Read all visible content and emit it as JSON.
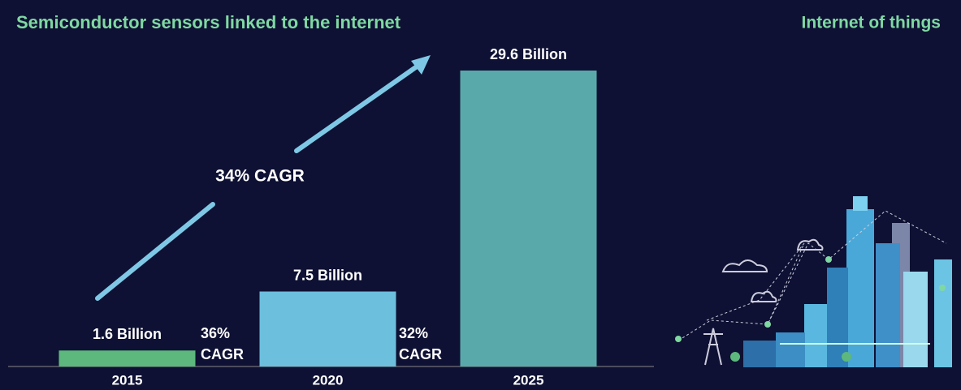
{
  "chart_data": {
    "type": "bar",
    "title": "Semiconductor sensors linked to the internet",
    "subtitle": "Internet of things",
    "categories": [
      "2015",
      "2020",
      "2025"
    ],
    "values": [
      1.6,
      7.5,
      29.6
    ],
    "value_labels": [
      "1.6 Billion",
      "7.5 Billion",
      "29.6 Billion"
    ],
    "colors": [
      "#5cb87c",
      "#6cc0de",
      "#5aa9aa"
    ],
    "annotations": [
      "34% CAGR",
      "36% CAGR",
      "32% CAGR"
    ]
  }
}
